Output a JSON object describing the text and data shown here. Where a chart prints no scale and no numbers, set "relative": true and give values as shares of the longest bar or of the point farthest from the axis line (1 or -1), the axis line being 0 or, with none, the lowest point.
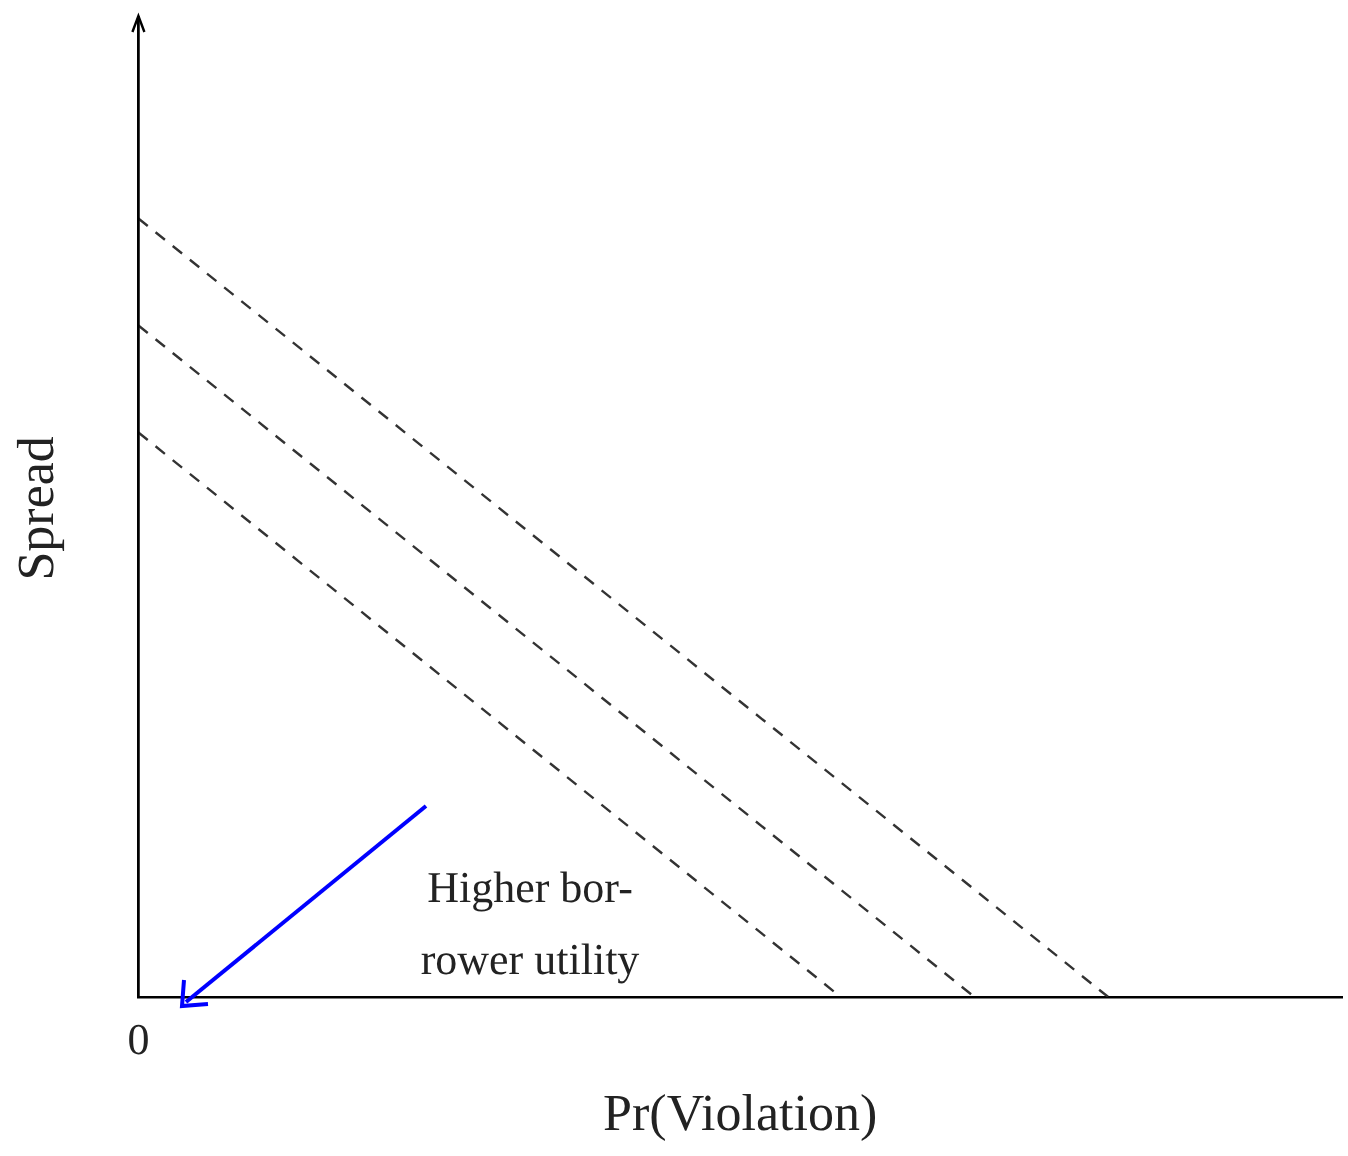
{
  "chart_data": {
    "type": "line",
    "relative": true,
    "xlabel": "Pr(Violation)",
    "ylabel": "Spread",
    "categories": [
      null,
      null,
      null,
      null,
      null,
      null,
      null,
      null,
      null,
      null,
      null,
      null,
      null,
      null,
      null,
      null,
      null,
      null,
      null,
      null,
      null,
      null,
      null,
      null,
      null,
      null,
      null,
      null,
      null,
      null,
      null,
      null,
      null,
      null,
      null,
      null,
      null
    ],
    "series": [
      {
        "color": "#333333",
        "values": [
          1,
          null,
          null,
          null,
          null,
          null,
          null,
          null,
          null,
          null,
          null,
          null,
          null,
          null,
          null,
          null,
          null,
          null,
          null,
          null,
          null,
          null,
          null,
          null,
          null,
          null,
          null,
          null,
          null,
          0,
          null,
          null,
          null,
          null,
          null,
          null,
          null
        ]
      },
      {
        "color": "#333333",
        "values": [
          0.8625,
          null,
          null,
          null,
          null,
          null,
          null,
          null,
          null,
          null,
          null,
          null,
          null,
          null,
          null,
          null,
          null,
          null,
          null,
          null,
          null,
          null,
          null,
          null,
          null,
          0,
          null,
          null,
          null,
          null,
          null,
          null,
          null,
          null,
          null,
          null,
          null
        ]
      },
      {
        "color": "#333333",
        "values": [
          0.725,
          null,
          null,
          null,
          null,
          null,
          null,
          null,
          null,
          null,
          null,
          null,
          null,
          null,
          null,
          null,
          null,
          null,
          null,
          null,
          null,
          0,
          null,
          null,
          null,
          null,
          null,
          null,
          null,
          null,
          null,
          null,
          null,
          null,
          null,
          null,
          null
        ]
      }
    ],
    "line_style": "dashed",
    "marker": "none",
    "grid": false,
    "legend": false,
    "annotations": [
      "0",
      "Higher bor-\nrower utility"
    ]
  }
}
